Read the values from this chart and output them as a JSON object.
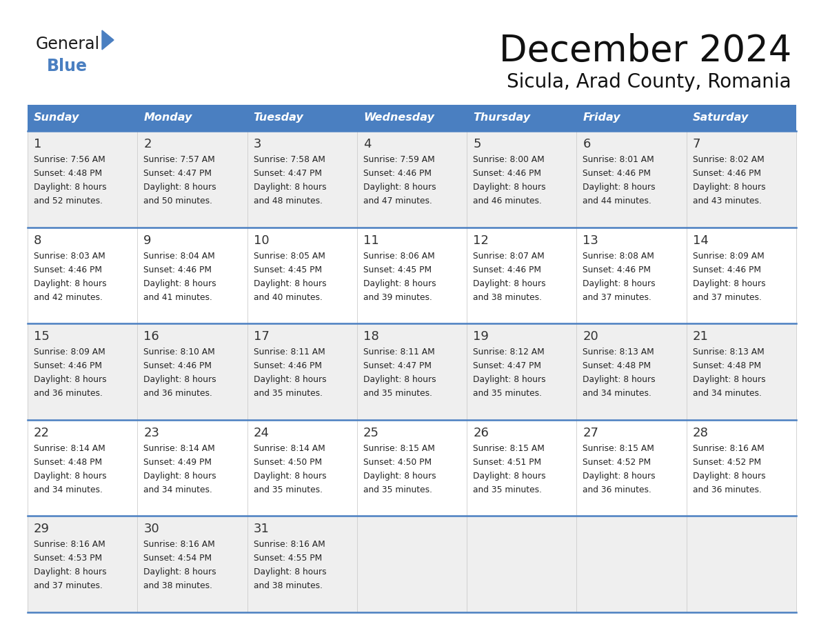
{
  "title": "December 2024",
  "subtitle": "Sicula, Arad County, Romania",
  "header_bg": "#4a7fc1",
  "header_text": "#FFFFFF",
  "header_days": [
    "Sunday",
    "Monday",
    "Tuesday",
    "Wednesday",
    "Thursday",
    "Friday",
    "Saturday"
  ],
  "row_bg_alt": "#efefef",
  "row_bg_white": "#FFFFFF",
  "separator_color": "#4a7fc1",
  "text_color": "#222222",
  "day_num_color": "#333333",
  "logo_general_color": "#1a1a1a",
  "logo_blue_color": "#4a7fc1",
  "days": [
    {
      "day": 1,
      "col": 0,
      "row": 0,
      "sunrise": "7:56 AM",
      "sunset": "4:48 PM",
      "daylight": "8 hours",
      "daylight2": "and 52 minutes."
    },
    {
      "day": 2,
      "col": 1,
      "row": 0,
      "sunrise": "7:57 AM",
      "sunset": "4:47 PM",
      "daylight": "8 hours",
      "daylight2": "and 50 minutes."
    },
    {
      "day": 3,
      "col": 2,
      "row": 0,
      "sunrise": "7:58 AM",
      "sunset": "4:47 PM",
      "daylight": "8 hours",
      "daylight2": "and 48 minutes."
    },
    {
      "day": 4,
      "col": 3,
      "row": 0,
      "sunrise": "7:59 AM",
      "sunset": "4:46 PM",
      "daylight": "8 hours",
      "daylight2": "and 47 minutes."
    },
    {
      "day": 5,
      "col": 4,
      "row": 0,
      "sunrise": "8:00 AM",
      "sunset": "4:46 PM",
      "daylight": "8 hours",
      "daylight2": "and 46 minutes."
    },
    {
      "day": 6,
      "col": 5,
      "row": 0,
      "sunrise": "8:01 AM",
      "sunset": "4:46 PM",
      "daylight": "8 hours",
      "daylight2": "and 44 minutes."
    },
    {
      "day": 7,
      "col": 6,
      "row": 0,
      "sunrise": "8:02 AM",
      "sunset": "4:46 PM",
      "daylight": "8 hours",
      "daylight2": "and 43 minutes."
    },
    {
      "day": 8,
      "col": 0,
      "row": 1,
      "sunrise": "8:03 AM",
      "sunset": "4:46 PM",
      "daylight": "8 hours",
      "daylight2": "and 42 minutes."
    },
    {
      "day": 9,
      "col": 1,
      "row": 1,
      "sunrise": "8:04 AM",
      "sunset": "4:46 PM",
      "daylight": "8 hours",
      "daylight2": "and 41 minutes."
    },
    {
      "day": 10,
      "col": 2,
      "row": 1,
      "sunrise": "8:05 AM",
      "sunset": "4:45 PM",
      "daylight": "8 hours",
      "daylight2": "and 40 minutes."
    },
    {
      "day": 11,
      "col": 3,
      "row": 1,
      "sunrise": "8:06 AM",
      "sunset": "4:45 PM",
      "daylight": "8 hours",
      "daylight2": "and 39 minutes."
    },
    {
      "day": 12,
      "col": 4,
      "row": 1,
      "sunrise": "8:07 AM",
      "sunset": "4:46 PM",
      "daylight": "8 hours",
      "daylight2": "and 38 minutes."
    },
    {
      "day": 13,
      "col": 5,
      "row": 1,
      "sunrise": "8:08 AM",
      "sunset": "4:46 PM",
      "daylight": "8 hours",
      "daylight2": "and 37 minutes."
    },
    {
      "day": 14,
      "col": 6,
      "row": 1,
      "sunrise": "8:09 AM",
      "sunset": "4:46 PM",
      "daylight": "8 hours",
      "daylight2": "and 37 minutes."
    },
    {
      "day": 15,
      "col": 0,
      "row": 2,
      "sunrise": "8:09 AM",
      "sunset": "4:46 PM",
      "daylight": "8 hours",
      "daylight2": "and 36 minutes."
    },
    {
      "day": 16,
      "col": 1,
      "row": 2,
      "sunrise": "8:10 AM",
      "sunset": "4:46 PM",
      "daylight": "8 hours",
      "daylight2": "and 36 minutes."
    },
    {
      "day": 17,
      "col": 2,
      "row": 2,
      "sunrise": "8:11 AM",
      "sunset": "4:46 PM",
      "daylight": "8 hours",
      "daylight2": "and 35 minutes."
    },
    {
      "day": 18,
      "col": 3,
      "row": 2,
      "sunrise": "8:11 AM",
      "sunset": "4:47 PM",
      "daylight": "8 hours",
      "daylight2": "and 35 minutes."
    },
    {
      "day": 19,
      "col": 4,
      "row": 2,
      "sunrise": "8:12 AM",
      "sunset": "4:47 PM",
      "daylight": "8 hours",
      "daylight2": "and 35 minutes."
    },
    {
      "day": 20,
      "col": 5,
      "row": 2,
      "sunrise": "8:13 AM",
      "sunset": "4:48 PM",
      "daylight": "8 hours",
      "daylight2": "and 34 minutes."
    },
    {
      "day": 21,
      "col": 6,
      "row": 2,
      "sunrise": "8:13 AM",
      "sunset": "4:48 PM",
      "daylight": "8 hours",
      "daylight2": "and 34 minutes."
    },
    {
      "day": 22,
      "col": 0,
      "row": 3,
      "sunrise": "8:14 AM",
      "sunset": "4:48 PM",
      "daylight": "8 hours",
      "daylight2": "and 34 minutes."
    },
    {
      "day": 23,
      "col": 1,
      "row": 3,
      "sunrise": "8:14 AM",
      "sunset": "4:49 PM",
      "daylight": "8 hours",
      "daylight2": "and 34 minutes."
    },
    {
      "day": 24,
      "col": 2,
      "row": 3,
      "sunrise": "8:14 AM",
      "sunset": "4:50 PM",
      "daylight": "8 hours",
      "daylight2": "and 35 minutes."
    },
    {
      "day": 25,
      "col": 3,
      "row": 3,
      "sunrise": "8:15 AM",
      "sunset": "4:50 PM",
      "daylight": "8 hours",
      "daylight2": "and 35 minutes."
    },
    {
      "day": 26,
      "col": 4,
      "row": 3,
      "sunrise": "8:15 AM",
      "sunset": "4:51 PM",
      "daylight": "8 hours",
      "daylight2": "and 35 minutes."
    },
    {
      "day": 27,
      "col": 5,
      "row": 3,
      "sunrise": "8:15 AM",
      "sunset": "4:52 PM",
      "daylight": "8 hours",
      "daylight2": "and 36 minutes."
    },
    {
      "day": 28,
      "col": 6,
      "row": 3,
      "sunrise": "8:16 AM",
      "sunset": "4:52 PM",
      "daylight": "8 hours",
      "daylight2": "and 36 minutes."
    },
    {
      "day": 29,
      "col": 0,
      "row": 4,
      "sunrise": "8:16 AM",
      "sunset": "4:53 PM",
      "daylight": "8 hours",
      "daylight2": "and 37 minutes."
    },
    {
      "day": 30,
      "col": 1,
      "row": 4,
      "sunrise": "8:16 AM",
      "sunset": "4:54 PM",
      "daylight": "8 hours",
      "daylight2": "and 38 minutes."
    },
    {
      "day": 31,
      "col": 2,
      "row": 4,
      "sunrise": "8:16 AM",
      "sunset": "4:55 PM",
      "daylight": "8 hours",
      "daylight2": "and 38 minutes."
    }
  ]
}
